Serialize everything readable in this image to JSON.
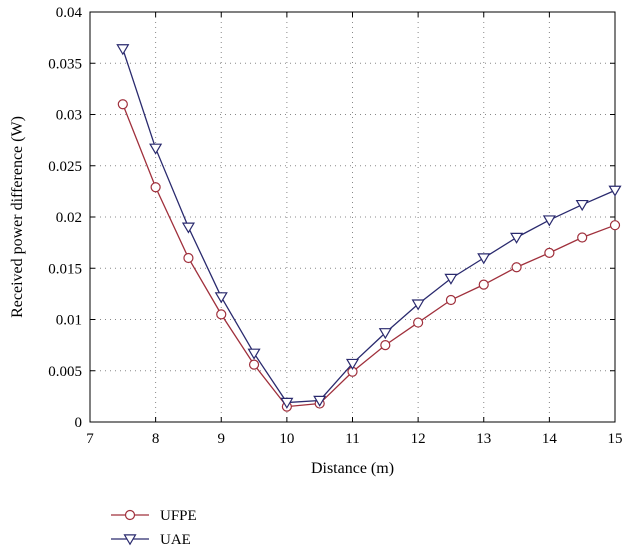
{
  "chart_data": {
    "type": "line",
    "title": "",
    "xlabel": "Distance (m)",
    "ylabel": "Received power difference (W)",
    "xlim": [
      7,
      15
    ],
    "ylim": [
      0,
      0.04
    ],
    "xticks": [
      7,
      8,
      9,
      10,
      11,
      12,
      13,
      14,
      15
    ],
    "yticks": [
      0,
      0.005,
      0.01,
      0.015,
      0.02,
      0.025,
      0.03,
      0.035,
      0.04
    ],
    "xtick_labels": [
      "7",
      "8",
      "9",
      "10",
      "11",
      "12",
      "13",
      "14",
      "15"
    ],
    "ytick_labels": [
      "0",
      "0.005",
      "0.01",
      "0.015",
      "0.02",
      "0.025",
      "0.03",
      "0.035",
      "0.04"
    ],
    "grid": true,
    "legend_position": "below",
    "x": [
      7.5,
      8,
      8.5,
      9,
      9.5,
      10,
      10.5,
      11,
      11.5,
      12,
      12.5,
      13,
      13.5,
      14,
      14.5,
      15
    ],
    "series": [
      {
        "name": "UFPE",
        "marker": "circle",
        "color": "#a0303c",
        "values": [
          0.031,
          0.0229,
          0.016,
          0.0105,
          0.0056,
          0.0015,
          0.0018,
          0.0049,
          0.0075,
          0.0097,
          0.0119,
          0.0134,
          0.0151,
          0.0165,
          0.018,
          0.0192
        ]
      },
      {
        "name": "UAE",
        "marker": "triangle-down",
        "color": "#2a2a6e",
        "values": [
          0.0364,
          0.0267,
          0.019,
          0.0122,
          0.0067,
          0.0019,
          0.0021,
          0.0057,
          0.0087,
          0.0115,
          0.014,
          0.016,
          0.018,
          0.0197,
          0.0212,
          0.0226
        ]
      }
    ]
  }
}
